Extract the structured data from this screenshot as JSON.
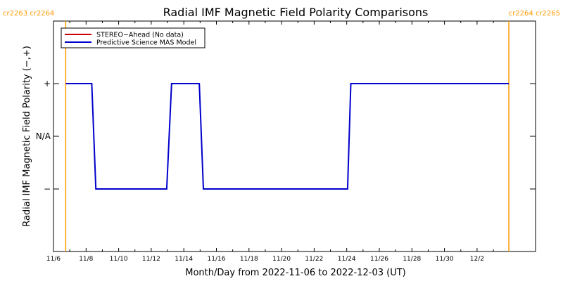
{
  "chart_data": {
    "type": "line",
    "title": "Radial IMF Magnetic Field Polarity Comparisons",
    "xlabel": "Month/Day from 2022-11-06 to 2022-12-03 (UT)",
    "ylabel": "Radial IMF Magnetic Field Polarity (−,+)",
    "x_range_days": [
      0,
      28.0
    ],
    "x_ticks": [
      {
        "day": 0,
        "label": "11/6"
      },
      {
        "day": 2,
        "label": "11/8"
      },
      {
        "day": 4,
        "label": "11/10"
      },
      {
        "day": 6,
        "label": "11/12"
      },
      {
        "day": 8,
        "label": "11/14"
      },
      {
        "day": 10,
        "label": "11/16"
      },
      {
        "day": 12,
        "label": "11/18"
      },
      {
        "day": 14,
        "label": "11/20"
      },
      {
        "day": 16,
        "label": "11/22"
      },
      {
        "day": 18,
        "label": "11/24"
      },
      {
        "day": 20,
        "label": "11/26"
      },
      {
        "day": 22,
        "label": "11/28"
      },
      {
        "day": 24,
        "label": "11/30"
      },
      {
        "day": 26,
        "label": "12/2"
      }
    ],
    "y_range": [
      -2,
      2
    ],
    "y_ticks": [
      {
        "value": 1,
        "label": "+"
      },
      {
        "value": 0,
        "label": "N/A"
      },
      {
        "value": -1,
        "label": "−"
      }
    ],
    "carrington_markers": [
      {
        "day": 0.75,
        "label": "cr2263 cr2264",
        "side": "left"
      },
      {
        "day": 27.95,
        "label": "cr2264 cr2265",
        "side": "right"
      }
    ],
    "series": [
      {
        "name": "STEREO−Ahead (No data)",
        "color": "#cc0000",
        "points": []
      },
      {
        "name": "Predictive Science MAS Model",
        "color": "#0000cc",
        "points": [
          [
            0.75,
            1
          ],
          [
            2.35,
            1
          ],
          [
            2.6,
            -1
          ],
          [
            6.95,
            -1
          ],
          [
            7.25,
            1
          ],
          [
            8.95,
            1
          ],
          [
            9.2,
            -1
          ],
          [
            18.05,
            -1
          ],
          [
            18.25,
            1
          ],
          [
            27.95,
            1
          ]
        ]
      }
    ],
    "legend_position": "top-left",
    "colors": {
      "marker": "#ff9900",
      "frame": "#000000"
    }
  }
}
